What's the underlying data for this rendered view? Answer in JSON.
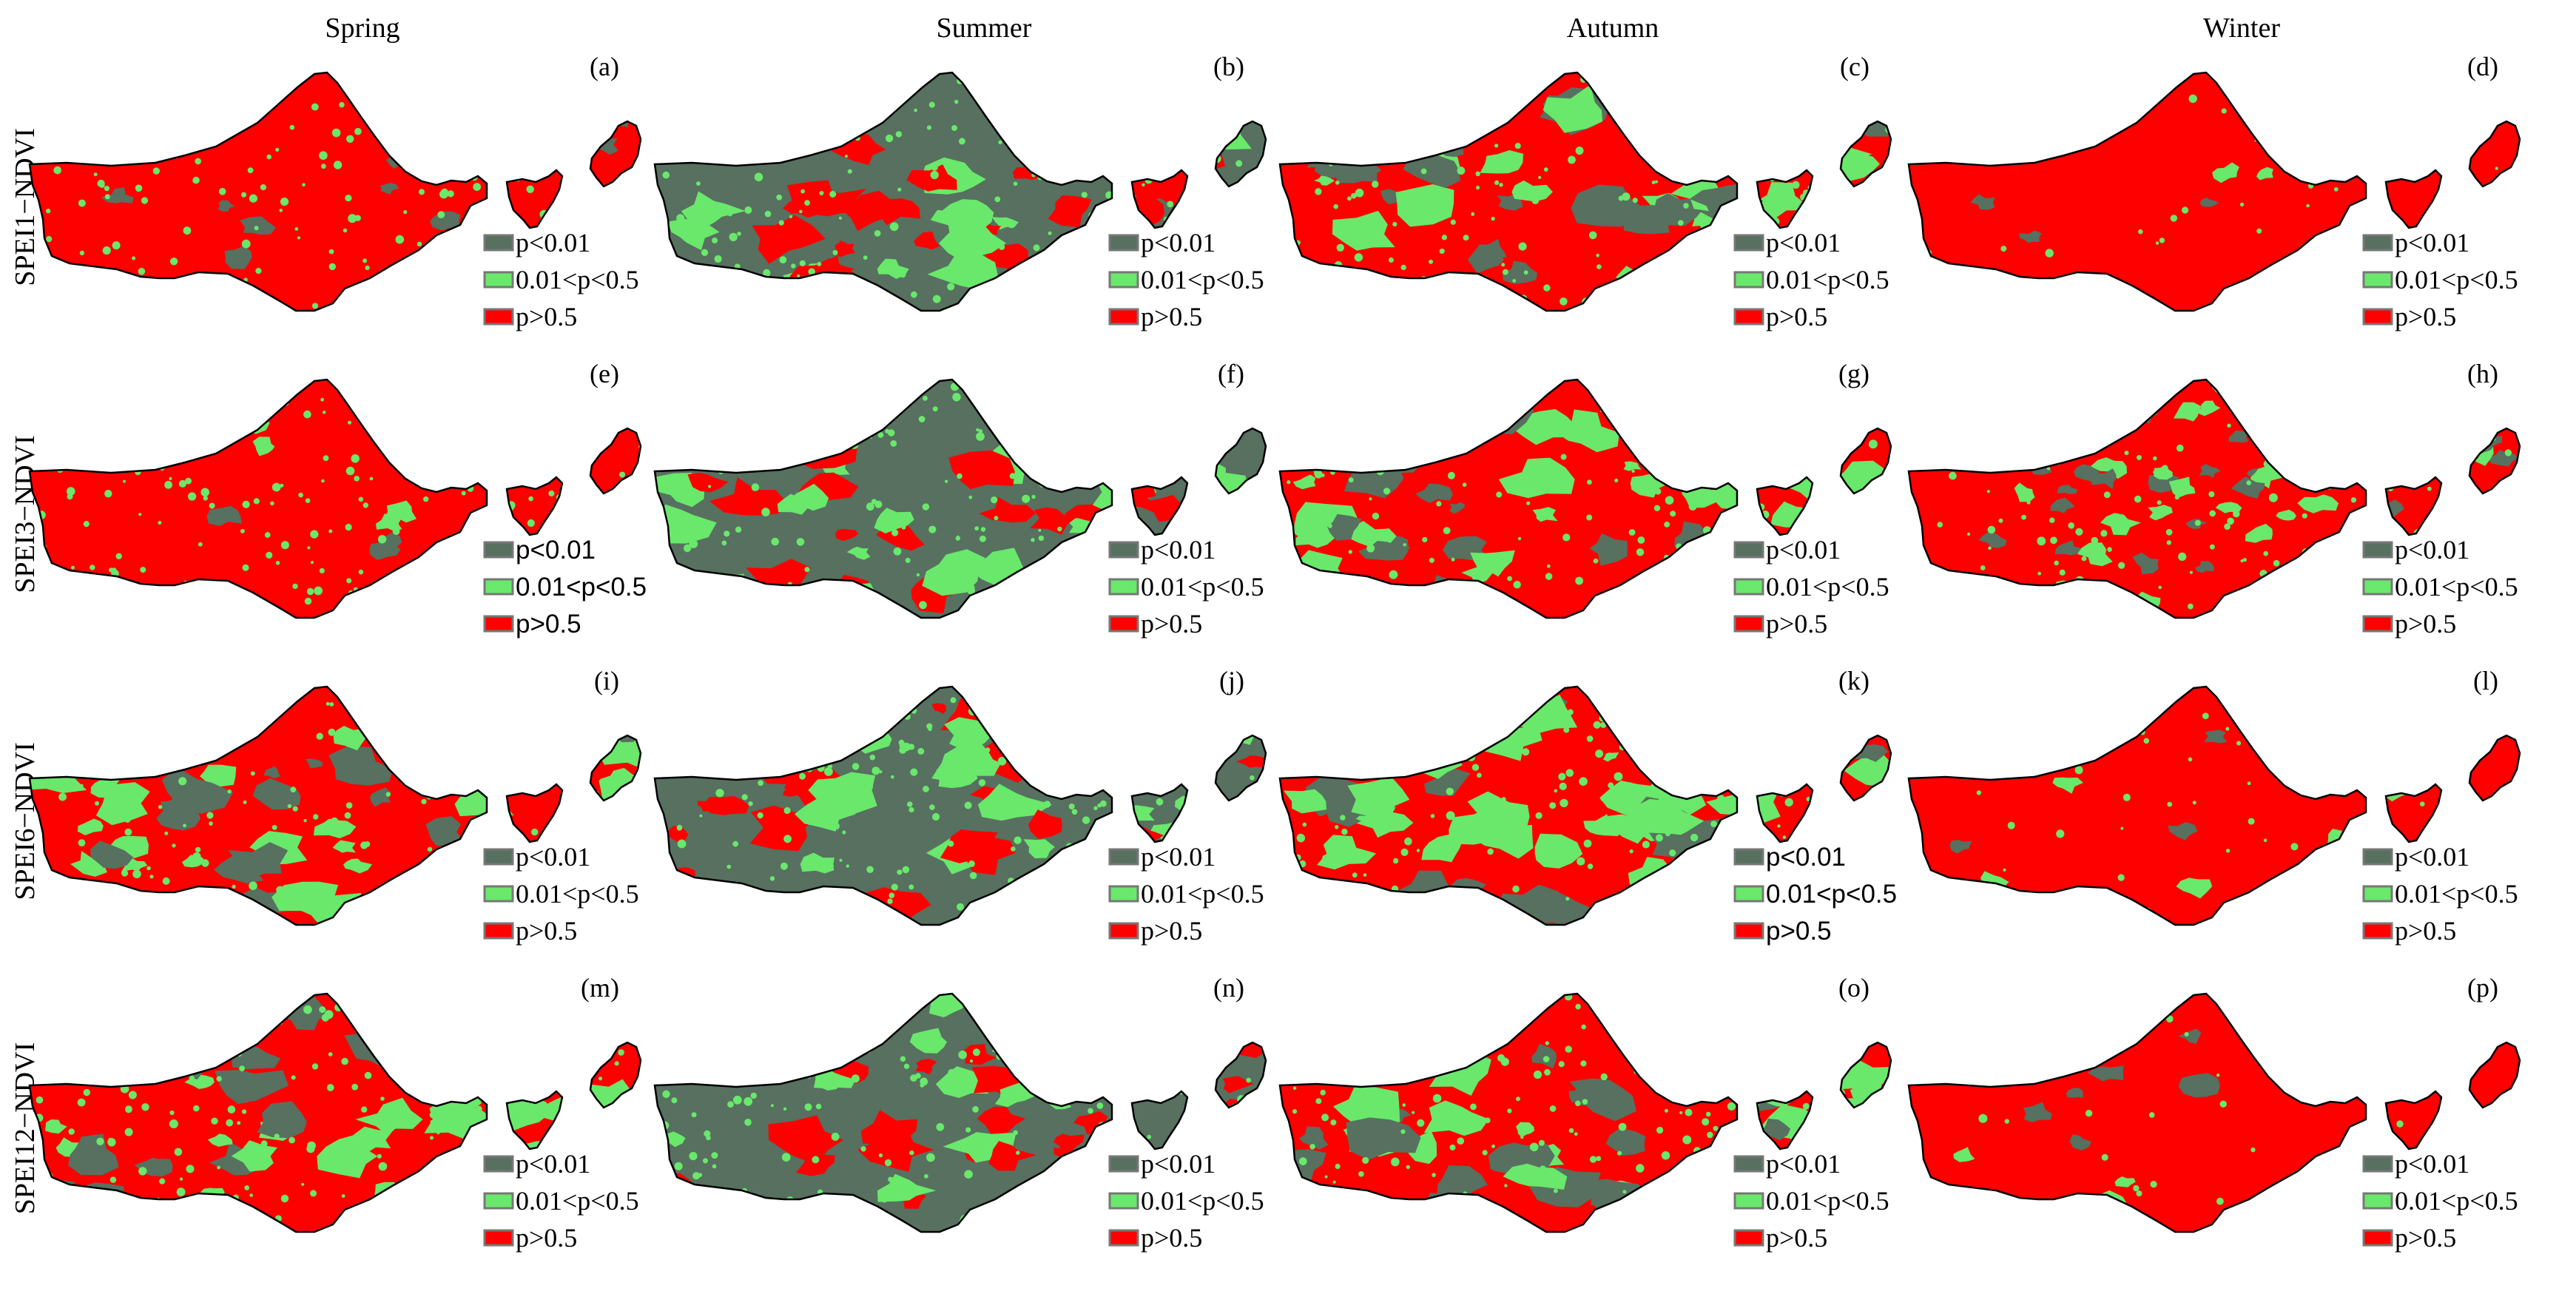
{
  "seasons": [
    "Spring",
    "Summer",
    "Autumn",
    "Winter"
  ],
  "indices": [
    "SPEI1−NDVI",
    "SPEI3−NDVI",
    "SPEI6−NDVI",
    "SPEI12−NDVI"
  ],
  "legend": {
    "items": [
      {
        "label": "p<0.01",
        "color": "#577060"
      },
      {
        "label": "0.01<p<0.5",
        "color": "#69e86b"
      },
      {
        "label": "p>0.5",
        "color": "#ff0000"
      }
    ]
  },
  "panels": [
    {
      "label": "(a)",
      "season": "Spring",
      "index": "SPEI1−NDVI",
      "dominant": "p>0.5"
    },
    {
      "label": "(b)",
      "season": "Summer",
      "index": "SPEI1−NDVI",
      "dominant": "p<0.01"
    },
    {
      "label": "(c)",
      "season": "Autumn",
      "index": "SPEI1−NDVI",
      "dominant": "p>0.5"
    },
    {
      "label": "(d)",
      "season": "Winter",
      "index": "SPEI1−NDVI",
      "dominant": "p>0.5"
    },
    {
      "label": "(e)",
      "season": "Spring",
      "index": "SPEI3−NDVI",
      "dominant": "p>0.5"
    },
    {
      "label": "(f)",
      "season": "Summer",
      "index": "SPEI3−NDVI",
      "dominant": "p<0.01"
    },
    {
      "label": "(g)",
      "season": "Autumn",
      "index": "SPEI3−NDVI",
      "dominant": "p>0.5"
    },
    {
      "label": "(h)",
      "season": "Winter",
      "index": "SPEI3−NDVI",
      "dominant": "p>0.5"
    },
    {
      "label": "(i)",
      "season": "Spring",
      "index": "SPEI6−NDVI",
      "dominant": "p>0.5"
    },
    {
      "label": "(j)",
      "season": "Summer",
      "index": "SPEI6−NDVI",
      "dominant": "p<0.01"
    },
    {
      "label": "(k)",
      "season": "Autumn",
      "index": "SPEI6−NDVI",
      "dominant": "p>0.5"
    },
    {
      "label": "(l)",
      "season": "Winter",
      "index": "SPEI6−NDVI",
      "dominant": "p>0.5"
    },
    {
      "label": "(m)",
      "season": "Spring",
      "index": "SPEI12−NDVI",
      "dominant": "p>0.5"
    },
    {
      "label": "(n)",
      "season": "Summer",
      "index": "SPEI12−NDVI",
      "dominant": "p<0.01"
    },
    {
      "label": "(o)",
      "season": "Autumn",
      "index": "SPEI12−NDVI",
      "dominant": "p>0.5"
    },
    {
      "label": "(p)",
      "season": "Winter",
      "index": "SPEI12−NDVI",
      "dominant": "p>0.5"
    }
  ]
}
